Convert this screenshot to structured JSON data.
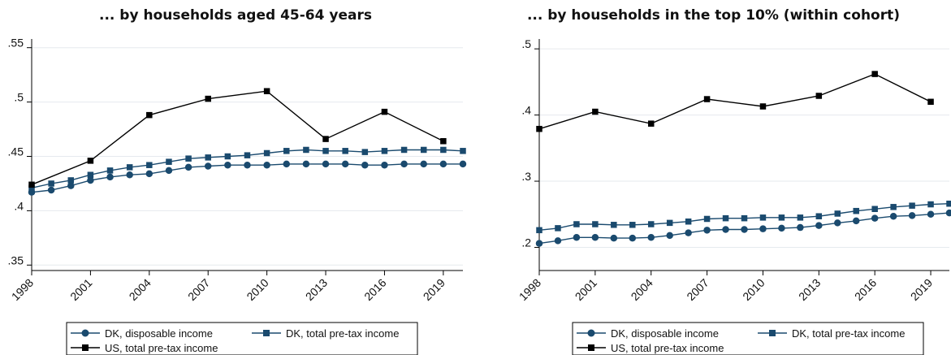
{
  "chart_data": [
    {
      "type": "line",
      "title": "... by households aged 45-64 years",
      "xlabel": "",
      "ylabel": "",
      "x": [
        1998,
        1999,
        2000,
        2001,
        2002,
        2003,
        2004,
        2005,
        2006,
        2007,
        2008,
        2009,
        2010,
        2011,
        2012,
        2013,
        2014,
        2015,
        2016,
        2017,
        2018,
        2019,
        2020
      ],
      "xticks": [
        "1998",
        "2001",
        "2004",
        "2007",
        "2010",
        "2013",
        "2016",
        "2019"
      ],
      "xlim": [
        1998,
        2020
      ],
      "yticks": [
        ".35",
        ".4",
        ".45",
        ".5",
        ".55"
      ],
      "ylim": [
        0.345,
        0.555
      ],
      "series": [
        {
          "name": "DK, disposable income",
          "color": "#1a4a6e",
          "marker": "circle",
          "x": [
            1998,
            1999,
            2000,
            2001,
            2002,
            2003,
            2004,
            2005,
            2006,
            2007,
            2008,
            2009,
            2010,
            2011,
            2012,
            2013,
            2014,
            2015,
            2016,
            2017,
            2018,
            2019,
            2020
          ],
          "values": [
            0.417,
            0.419,
            0.423,
            0.428,
            0.431,
            0.433,
            0.434,
            0.437,
            0.44,
            0.441,
            0.442,
            0.442,
            0.442,
            0.443,
            0.443,
            0.443,
            0.443,
            0.442,
            0.442,
            0.443,
            0.443,
            0.443,
            0.443
          ]
        },
        {
          "name": "DK, total pre-tax income",
          "color": "#1a4a6e",
          "marker": "square",
          "x": [
            1998,
            1999,
            2000,
            2001,
            2002,
            2003,
            2004,
            2005,
            2006,
            2007,
            2008,
            2009,
            2010,
            2011,
            2012,
            2013,
            2014,
            2015,
            2016,
            2017,
            2018,
            2019,
            2020
          ],
          "values": [
            0.421,
            0.425,
            0.428,
            0.433,
            0.437,
            0.44,
            0.442,
            0.445,
            0.448,
            0.449,
            0.45,
            0.451,
            0.453,
            0.455,
            0.456,
            0.455,
            0.455,
            0.454,
            0.455,
            0.456,
            0.456,
            0.456,
            0.455
          ]
        },
        {
          "name": "US, total pre-tax income",
          "color": "#000000",
          "marker": "square",
          "x": [
            1998,
            2001,
            2004,
            2007,
            2010,
            2013,
            2016,
            2019
          ],
          "values": [
            0.424,
            0.446,
            0.488,
            0.503,
            0.51,
            0.466,
            0.491,
            0.464
          ]
        }
      ],
      "legend": {
        "placement": "bottom",
        "items": [
          "DK, disposable income",
          "DK, total pre-tax income",
          "US, total pre-tax income"
        ]
      },
      "grid": true
    },
    {
      "type": "line",
      "title": "... by households in the top 10% (within cohort)",
      "xlabel": "",
      "ylabel": "",
      "x": [
        1998,
        1999,
        2000,
        2001,
        2002,
        2003,
        2004,
        2005,
        2006,
        2007,
        2008,
        2009,
        2010,
        2011,
        2012,
        2013,
        2014,
        2015,
        2016,
        2017,
        2018,
        2019,
        2020
      ],
      "xticks": [
        "1998",
        "2001",
        "2004",
        "2007",
        "2010",
        "2013",
        "2016",
        "2019"
      ],
      "xlim": [
        1998,
        2020
      ],
      "yticks": [
        ".2",
        ".3",
        ".4",
        ".5"
      ],
      "ylim": [
        0.165,
        0.51
      ],
      "series": [
        {
          "name": "DK, disposable income",
          "color": "#1a4a6e",
          "marker": "circle",
          "x": [
            1998,
            1999,
            2000,
            2001,
            2002,
            2003,
            2004,
            2005,
            2006,
            2007,
            2008,
            2009,
            2010,
            2011,
            2012,
            2013,
            2014,
            2015,
            2016,
            2017,
            2018,
            2019,
            2020
          ],
          "values": [
            0.206,
            0.21,
            0.215,
            0.215,
            0.214,
            0.214,
            0.215,
            0.218,
            0.222,
            0.226,
            0.227,
            0.227,
            0.228,
            0.229,
            0.23,
            0.233,
            0.237,
            0.24,
            0.244,
            0.247,
            0.248,
            0.25,
            0.252
          ]
        },
        {
          "name": "DK, total pre-tax income",
          "color": "#1a4a6e",
          "marker": "square",
          "x": [
            1998,
            1999,
            2000,
            2001,
            2002,
            2003,
            2004,
            2005,
            2006,
            2007,
            2008,
            2009,
            2010,
            2011,
            2012,
            2013,
            2014,
            2015,
            2016,
            2017,
            2018,
            2019,
            2020
          ],
          "values": [
            0.226,
            0.229,
            0.235,
            0.235,
            0.234,
            0.234,
            0.235,
            0.237,
            0.239,
            0.243,
            0.244,
            0.244,
            0.245,
            0.245,
            0.245,
            0.247,
            0.251,
            0.255,
            0.258,
            0.261,
            0.263,
            0.265,
            0.266
          ]
        },
        {
          "name": "US, total pre-tax income",
          "color": "#000000",
          "marker": "square",
          "x": [
            1998,
            2001,
            2004,
            2007,
            2010,
            2013,
            2016,
            2019
          ],
          "values": [
            0.379,
            0.405,
            0.387,
            0.424,
            0.413,
            0.429,
            0.462,
            0.42
          ]
        }
      ],
      "legend": {
        "placement": "bottom",
        "items": [
          "DK, disposable income",
          "DK, total pre-tax income",
          "US, total pre-tax income"
        ]
      },
      "grid": true
    }
  ]
}
